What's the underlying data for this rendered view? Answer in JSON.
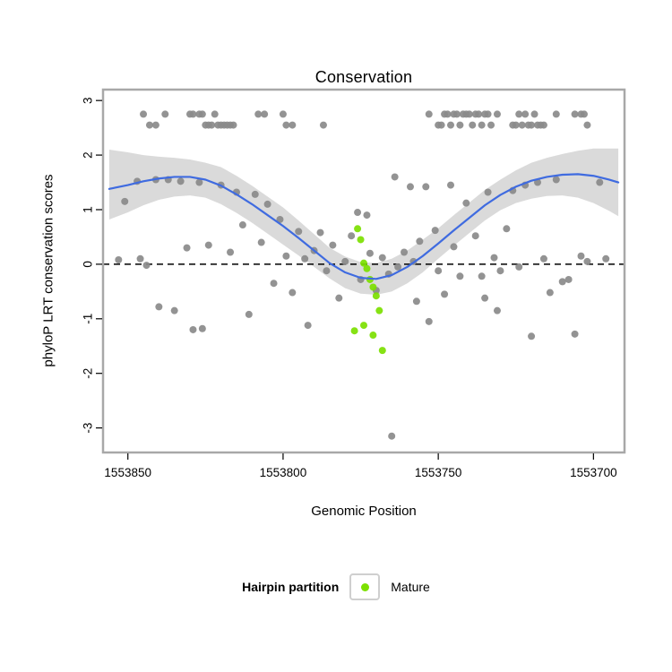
{
  "title": "Conservation",
  "xlabel": "Genomic Position",
  "ylabel": "phyloP LRT conservation scores",
  "legend": {
    "title": "Hairpin partition",
    "items": [
      {
        "label": "Mature",
        "color": "#7ce000"
      }
    ]
  },
  "colors": {
    "point_gray": "#8a8a8a",
    "mature_green": "#7ce000",
    "smooth_blue": "#3f6be0",
    "band_gray": "#d4d4d4",
    "panel_border": "#a8a8a8",
    "reference_line": "#000000"
  },
  "chart_data": {
    "type": "scatter",
    "title": "Conservation",
    "xlabel": "Genomic Position",
    "ylabel": "phyloP LRT conservation scores",
    "x_axis": {
      "ticks": [
        1553850,
        1553800,
        1553750,
        1553700
      ],
      "range": [
        1553690,
        1553858
      ],
      "reversed": true
    },
    "y_axis": {
      "ticks": [
        -3,
        -2,
        -1,
        0,
        1,
        2,
        3
      ],
      "range": [
        -3.45,
        3.2
      ]
    },
    "reference_line_y": 0,
    "series": [
      {
        "name": "Other",
        "color": "#8a8a8a",
        "points": [
          [
            1553845,
            2.75
          ],
          [
            1553838,
            2.75
          ],
          [
            1553830,
            2.75
          ],
          [
            1553829,
            2.75
          ],
          [
            1553827,
            2.75
          ],
          [
            1553826,
            2.75
          ],
          [
            1553822,
            2.75
          ],
          [
            1553808,
            2.75
          ],
          [
            1553806,
            2.75
          ],
          [
            1553800,
            2.75
          ],
          [
            1553753,
            2.75
          ],
          [
            1553748,
            2.75
          ],
          [
            1553747,
            2.75
          ],
          [
            1553745,
            2.75
          ],
          [
            1553744,
            2.75
          ],
          [
            1553742,
            2.75
          ],
          [
            1553741,
            2.75
          ],
          [
            1553740,
            2.75
          ],
          [
            1553738,
            2.75
          ],
          [
            1553737,
            2.75
          ],
          [
            1553735,
            2.75
          ],
          [
            1553734,
            2.75
          ],
          [
            1553731,
            2.75
          ],
          [
            1553724,
            2.75
          ],
          [
            1553722,
            2.75
          ],
          [
            1553719,
            2.75
          ],
          [
            1553712,
            2.75
          ],
          [
            1553706,
            2.75
          ],
          [
            1553704,
            2.75
          ],
          [
            1553703,
            2.75
          ],
          [
            1553843,
            2.55
          ],
          [
            1553841,
            2.55
          ],
          [
            1553825,
            2.55
          ],
          [
            1553824,
            2.55
          ],
          [
            1553823,
            2.55
          ],
          [
            1553821,
            2.55
          ],
          [
            1553820,
            2.55
          ],
          [
            1553819,
            2.55
          ],
          [
            1553818,
            2.55
          ],
          [
            1553817,
            2.55
          ],
          [
            1553816,
            2.55
          ],
          [
            1553799,
            2.55
          ],
          [
            1553797,
            2.55
          ],
          [
            1553787,
            2.55
          ],
          [
            1553750,
            2.55
          ],
          [
            1553749,
            2.55
          ],
          [
            1553746,
            2.55
          ],
          [
            1553743,
            2.55
          ],
          [
            1553739,
            2.55
          ],
          [
            1553736,
            2.55
          ],
          [
            1553733,
            2.55
          ],
          [
            1553726,
            2.55
          ],
          [
            1553725,
            2.55
          ],
          [
            1553723,
            2.55
          ],
          [
            1553721,
            2.55
          ],
          [
            1553720,
            2.55
          ],
          [
            1553718,
            2.55
          ],
          [
            1553717,
            2.55
          ],
          [
            1553716,
            2.55
          ],
          [
            1553702,
            2.55
          ],
          [
            1553853,
            0.08
          ],
          [
            1553851,
            1.15
          ],
          [
            1553847,
            1.52
          ],
          [
            1553846,
            0.1
          ],
          [
            1553844,
            -0.02
          ],
          [
            1553841,
            1.55
          ],
          [
            1553840,
            -0.78
          ],
          [
            1553837,
            1.55
          ],
          [
            1553835,
            -0.85
          ],
          [
            1553833,
            1.52
          ],
          [
            1553831,
            0.3
          ],
          [
            1553829,
            -1.2
          ],
          [
            1553827,
            1.5
          ],
          [
            1553826,
            -1.18
          ],
          [
            1553824,
            0.35
          ],
          [
            1553820,
            1.45
          ],
          [
            1553817,
            0.22
          ],
          [
            1553815,
            1.32
          ],
          [
            1553813,
            0.72
          ],
          [
            1553811,
            -0.92
          ],
          [
            1553809,
            1.28
          ],
          [
            1553807,
            0.4
          ],
          [
            1553805,
            1.1
          ],
          [
            1553803,
            -0.35
          ],
          [
            1553801,
            0.82
          ],
          [
            1553799,
            0.15
          ],
          [
            1553797,
            -0.52
          ],
          [
            1553795,
            0.6
          ],
          [
            1553793,
            0.1
          ],
          [
            1553792,
            -1.12
          ],
          [
            1553790,
            0.25
          ],
          [
            1553788,
            0.58
          ],
          [
            1553786,
            -0.12
          ],
          [
            1553784,
            0.35
          ],
          [
            1553782,
            -0.62
          ],
          [
            1553780,
            0.05
          ],
          [
            1553778,
            0.52
          ],
          [
            1553776,
            0.95
          ],
          [
            1553775,
            -0.28
          ],
          [
            1553773,
            0.9
          ],
          [
            1553772,
            0.2
          ],
          [
            1553770,
            -0.48
          ],
          [
            1553768,
            0.12
          ],
          [
            1553766,
            -0.18
          ],
          [
            1553765,
            -3.15
          ],
          [
            1553764,
            1.6
          ],
          [
            1553763,
            -0.05
          ],
          [
            1553761,
            0.22
          ],
          [
            1553759,
            1.42
          ],
          [
            1553758,
            0.05
          ],
          [
            1553757,
            -0.68
          ],
          [
            1553756,
            0.42
          ],
          [
            1553754,
            1.42
          ],
          [
            1553753,
            -1.05
          ],
          [
            1553751,
            0.62
          ],
          [
            1553750,
            -0.12
          ],
          [
            1553748,
            -0.55
          ],
          [
            1553746,
            1.45
          ],
          [
            1553745,
            0.32
          ],
          [
            1553743,
            -0.22
          ],
          [
            1553741,
            1.12
          ],
          [
            1553738,
            0.52
          ],
          [
            1553736,
            -0.22
          ],
          [
            1553735,
            -0.62
          ],
          [
            1553734,
            1.32
          ],
          [
            1553732,
            0.12
          ],
          [
            1553731,
            -0.85
          ],
          [
            1553730,
            -0.12
          ],
          [
            1553728,
            0.65
          ],
          [
            1553726,
            1.35
          ],
          [
            1553724,
            -0.05
          ],
          [
            1553722,
            1.45
          ],
          [
            1553720,
            -1.32
          ],
          [
            1553718,
            1.5
          ],
          [
            1553716,
            0.1
          ],
          [
            1553714,
            -0.52
          ],
          [
            1553712,
            1.55
          ],
          [
            1553710,
            -0.32
          ],
          [
            1553708,
            -0.28
          ],
          [
            1553706,
            -1.28
          ],
          [
            1553704,
            0.15
          ],
          [
            1553702,
            0.05
          ],
          [
            1553698,
            1.5
          ],
          [
            1553696,
            0.1
          ]
        ]
      },
      {
        "name": "Mature",
        "color": "#7ce000",
        "points": [
          [
            1553776,
            0.65
          ],
          [
            1553775,
            0.45
          ],
          [
            1553774,
            0.02
          ],
          [
            1553773,
            -0.08
          ],
          [
            1553772,
            -0.28
          ],
          [
            1553771,
            -0.42
          ],
          [
            1553770,
            -0.58
          ],
          [
            1553769,
            -0.85
          ],
          [
            1553777,
            -1.22
          ],
          [
            1553771,
            -1.3
          ],
          [
            1553768,
            -1.58
          ],
          [
            1553774,
            -1.12
          ]
        ]
      }
    ],
    "smooth": {
      "color": "#3f6be0",
      "band_color": "#d4d4d4",
      "x": [
        1553856,
        1553850,
        1553845,
        1553840,
        1553835,
        1553830,
        1553825,
        1553820,
        1553815,
        1553810,
        1553805,
        1553800,
        1553795,
        1553790,
        1553785,
        1553780,
        1553775,
        1553770,
        1553765,
        1553760,
        1553755,
        1553750,
        1553745,
        1553740,
        1553735,
        1553730,
        1553725,
        1553720,
        1553715,
        1553710,
        1553705,
        1553700,
        1553695,
        1553692
      ],
      "y": [
        1.38,
        1.45,
        1.52,
        1.57,
        1.6,
        1.6,
        1.55,
        1.44,
        1.28,
        1.1,
        0.9,
        0.7,
        0.48,
        0.25,
        0.02,
        -0.15,
        -0.25,
        -0.27,
        -0.2,
        -0.05,
        0.15,
        0.38,
        0.62,
        0.85,
        1.08,
        1.27,
        1.42,
        1.53,
        1.6,
        1.64,
        1.65,
        1.62,
        1.55,
        1.5
      ],
      "lower": [
        0.82,
        0.95,
        1.08,
        1.18,
        1.24,
        1.26,
        1.22,
        1.1,
        0.94,
        0.76,
        0.56,
        0.36,
        0.16,
        -0.05,
        -0.26,
        -0.44,
        -0.54,
        -0.56,
        -0.5,
        -0.35,
        -0.15,
        0.1,
        0.34,
        0.57,
        0.8,
        0.99,
        1.12,
        1.2,
        1.25,
        1.26,
        1.22,
        1.12,
        0.98,
        0.88
      ],
      "upper": [
        2.1,
        2.05,
        2.0,
        1.97,
        1.95,
        1.92,
        1.86,
        1.78,
        1.62,
        1.44,
        1.24,
        1.04,
        0.8,
        0.55,
        0.3,
        0.14,
        0.04,
        0.02,
        0.1,
        0.25,
        0.45,
        0.66,
        0.9,
        1.13,
        1.36,
        1.55,
        1.72,
        1.86,
        1.95,
        2.02,
        2.08,
        2.12,
        2.12,
        2.12
      ]
    }
  }
}
